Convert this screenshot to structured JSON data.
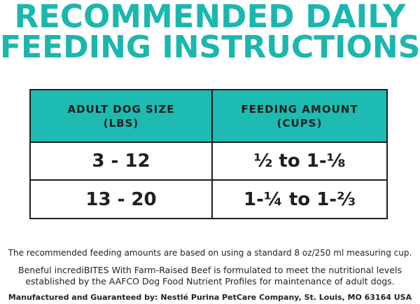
{
  "heading": {
    "line1": "RECOMMENDED DAILY",
    "line2": "FEEDING INSTRUCTIONS"
  },
  "table": {
    "headers": [
      {
        "line1": "ADULT DOG SIZE",
        "line2": "(LBS)"
      },
      {
        "line1": "FEEDING AMOUNT",
        "line2": "(CUPS)"
      }
    ],
    "rows": [
      {
        "size": "3 - 12",
        "amount": "½ to 1-⅛"
      },
      {
        "size": "13 - 20",
        "amount": "1-¼ to 1-⅔"
      }
    ]
  },
  "notes": {
    "measuring": "The recommended feeding amounts are based on using a standard 8 oz/250 ml measuring cup.",
    "aafco_line1": "Beneful incrediBITES With Farm-Raised Beef is formulated to meet the nutritional levels",
    "aafco_line2": "established by the AAFCO Dog Food Nutrient Profiles for maintenance of adult dogs.",
    "manufacturer": "Manufactured and Guaranteed by: Nestlé Purina PetCare Company, St. Louis, MO 63164 USA"
  },
  "colors": {
    "accent": "#1bb7ae",
    "header_fill": "#1dbbb1",
    "text": "#1f1f1f"
  }
}
